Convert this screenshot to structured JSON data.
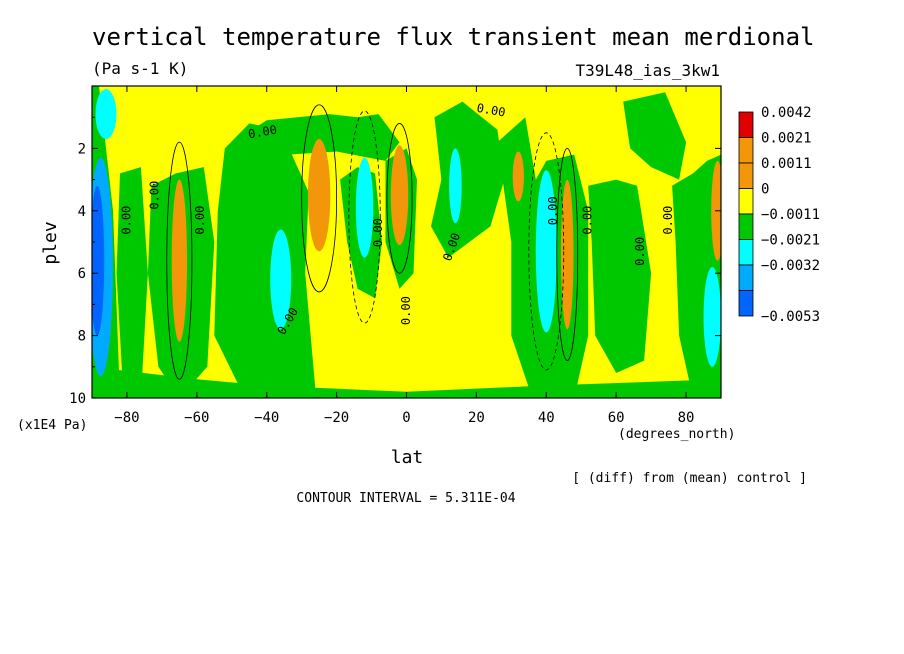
{
  "chart_data": {
    "type": "heatmap",
    "title": "vertical temperature flux transient mean merdional",
    "units": "(Pa s-1 K)",
    "run_label": "T39L48_ias_3kw1",
    "xlabel": "lat",
    "x_units": "(degrees_north)",
    "ylabel": "plev",
    "y_units": "(x1E4 Pa)",
    "xlim": [
      -90,
      90
    ],
    "ylim": [
      0,
      10
    ],
    "y_inverted": true,
    "x_ticks": [
      -80,
      -60,
      -40,
      -20,
      0,
      20,
      40,
      60,
      80
    ],
    "x_tick_labels": [
      "−80",
      "−60",
      "−40",
      "−20",
      "0",
      "20",
      "40",
      "60",
      "80"
    ],
    "y_ticks": [
      2,
      4,
      6,
      8,
      10
    ],
    "y_tick_labels": [
      "2",
      "4",
      "6",
      "8",
      "10"
    ],
    "contour_interval_text": "CONTOUR INTERVAL = 5.311E-04",
    "diff_note": "[ (diff) from (mean) control ]",
    "contour_labels": [
      "0.00",
      "0.00",
      "0.00",
      "0.00",
      "0.00",
      "0.00",
      "0.00",
      "0.00",
      "0.00",
      "0.00",
      "0.00",
      "0.00",
      "0.00"
    ],
    "legend": {
      "placement": "right",
      "levels": [
        "0.0042",
        "0.0021",
        "0.0011",
        "0",
        "−0.0011",
        "−0.0021",
        "−0.0032",
        "−0.0053"
      ],
      "colors": [
        "#e00000",
        "#f2960a",
        "#f2960a",
        "#ffff00",
        "#00c800",
        "#00ffff",
        "#00aaff",
        "#0064ff"
      ]
    },
    "colors": {
      "strong_negative": "#0064ff",
      "negative_2": "#00aaff",
      "negative_1": "#00ffff",
      "near_zero_negative": "#00c800",
      "near_zero_positive": "#ffff00",
      "positive_1": "#f2960a",
      "positive_2": "#e00000"
    },
    "field_features": [
      {
        "lat": -88,
        "plev": 6.0,
        "value": -0.0053
      },
      {
        "lat": -86,
        "plev": 1.0,
        "value": -0.0025
      },
      {
        "lat": -65,
        "plev": 5.5,
        "value": 0.0016
      },
      {
        "lat": -25,
        "plev": 3.5,
        "value": 0.0018
      },
      {
        "lat": -12,
        "plev": 3.8,
        "value": -0.0016
      },
      {
        "lat": -2,
        "plev": 3.5,
        "value": 0.0014
      },
      {
        "lat": 14,
        "plev": 3.3,
        "value": -0.0014
      },
      {
        "lat": 32,
        "plev": 2.9,
        "value": 0.0012
      },
      {
        "lat": 40,
        "plev": 5.3,
        "value": -0.002
      },
      {
        "lat": 46,
        "plev": 5.3,
        "value": 0.0014
      },
      {
        "lat": -36,
        "plev": 6.2,
        "value": -0.0014
      },
      {
        "lat": 88,
        "plev": 4.0,
        "value": 0.0012
      },
      {
        "lat": 87,
        "plev": 7.5,
        "value": -0.0016
      }
    ]
  }
}
